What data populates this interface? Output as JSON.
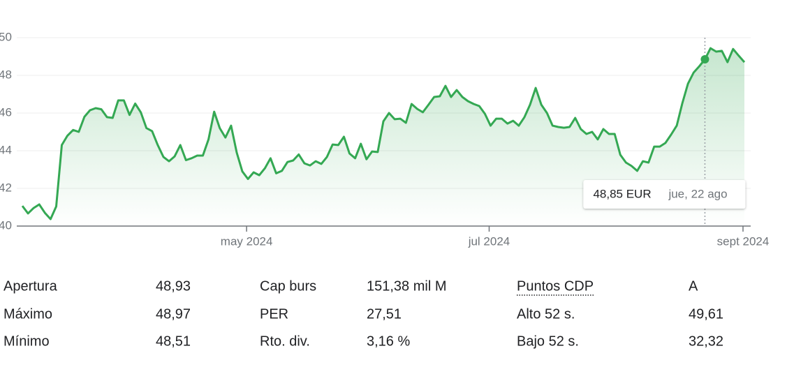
{
  "chart_data": {
    "type": "line",
    "categories": [
      null,
      null,
      null,
      null,
      null,
      null,
      null,
      null,
      null,
      null,
      null,
      null,
      null,
      null,
      null,
      null,
      null,
      null,
      null,
      null,
      null,
      null,
      null,
      null,
      null,
      null,
      null,
      null,
      null,
      null,
      null,
      null,
      null,
      null,
      null,
      null,
      null,
      null,
      null,
      null,
      "may 2024",
      null,
      null,
      null,
      null,
      null,
      null,
      null,
      null,
      null,
      null,
      null,
      null,
      null,
      null,
      null,
      null,
      null,
      null,
      null,
      null,
      null,
      null,
      null,
      null,
      null,
      null,
      null,
      null,
      null,
      null,
      null,
      null,
      null,
      null,
      null,
      null,
      null,
      null,
      null,
      null,
      null,
      null,
      "jul 2024",
      null,
      null,
      null,
      null,
      null,
      null,
      null,
      null,
      null,
      null,
      null,
      null,
      null,
      null,
      null,
      null,
      null,
      null,
      null,
      null,
      null,
      null,
      null,
      null,
      null,
      null,
      null,
      null,
      null,
      null,
      null,
      null,
      null,
      null,
      null,
      null,
      null,
      null,
      null,
      null,
      null,
      null,
      null,
      null,
      "sept 2024"
    ],
    "series": [
      {
        "color": "#34a853",
        "values": [
          41.07,
          40.67,
          40.96,
          41.15,
          40.7,
          40.37,
          41.04,
          44.3,
          44.8,
          45.1,
          45.0,
          45.8,
          46.15,
          46.26,
          46.2,
          45.78,
          45.74,
          46.67,
          46.67,
          45.9,
          46.5,
          46.04,
          45.2,
          45.04,
          44.3,
          43.67,
          43.44,
          43.7,
          44.3,
          43.5,
          43.6,
          43.74,
          43.74,
          44.6,
          46.07,
          45.2,
          44.7,
          45.33,
          43.9,
          42.9,
          42.5,
          42.85,
          42.7,
          43.07,
          43.6,
          42.8,
          42.93,
          43.4,
          43.48,
          43.8,
          43.33,
          43.22,
          43.44,
          43.3,
          43.67,
          44.33,
          44.3,
          44.74,
          43.85,
          43.6,
          44.37,
          43.55,
          43.96,
          43.93,
          45.56,
          46.0,
          45.67,
          45.7,
          45.48,
          46.48,
          46.22,
          46.04,
          46.44,
          46.85,
          46.89,
          47.44,
          46.85,
          47.22,
          46.85,
          46.63,
          46.48,
          46.37,
          45.96,
          45.33,
          45.7,
          45.7,
          45.44,
          45.59,
          45.33,
          45.78,
          46.44,
          47.33,
          46.44,
          46.0,
          45.33,
          45.26,
          45.22,
          45.26,
          45.74,
          45.15,
          44.89,
          45.0,
          44.6,
          45.15,
          44.89,
          44.89,
          43.78,
          43.37,
          43.19,
          42.93,
          43.44,
          43.37,
          44.22,
          44.22,
          44.41,
          44.85,
          45.33,
          46.52,
          47.56,
          48.15,
          48.48,
          48.85,
          49.44,
          49.26,
          49.3,
          48.7,
          49.4,
          49.04,
          48.7
        ]
      }
    ],
    "ylim": [
      40,
      50
    ],
    "yticks": [
      40,
      42,
      44,
      46,
      48,
      50
    ],
    "grid": true,
    "tooltip": {
      "value": 48.85,
      "label": "48,85 EUR",
      "date": "jue, 22 ago"
    }
  },
  "stats": {
    "rows": [
      [
        "Apertura",
        "48,93",
        "Cap burs",
        "151,38 mil M",
        "Puntos CDP",
        "A"
      ],
      [
        "Máximo",
        "48,97",
        "PER",
        "27,51",
        "Alto 52 s.",
        "49,61"
      ],
      [
        "Mínimo",
        "48,51",
        "Rto. div.",
        "3,16 %",
        "Bajo 52 s.",
        "32,32"
      ]
    ]
  }
}
